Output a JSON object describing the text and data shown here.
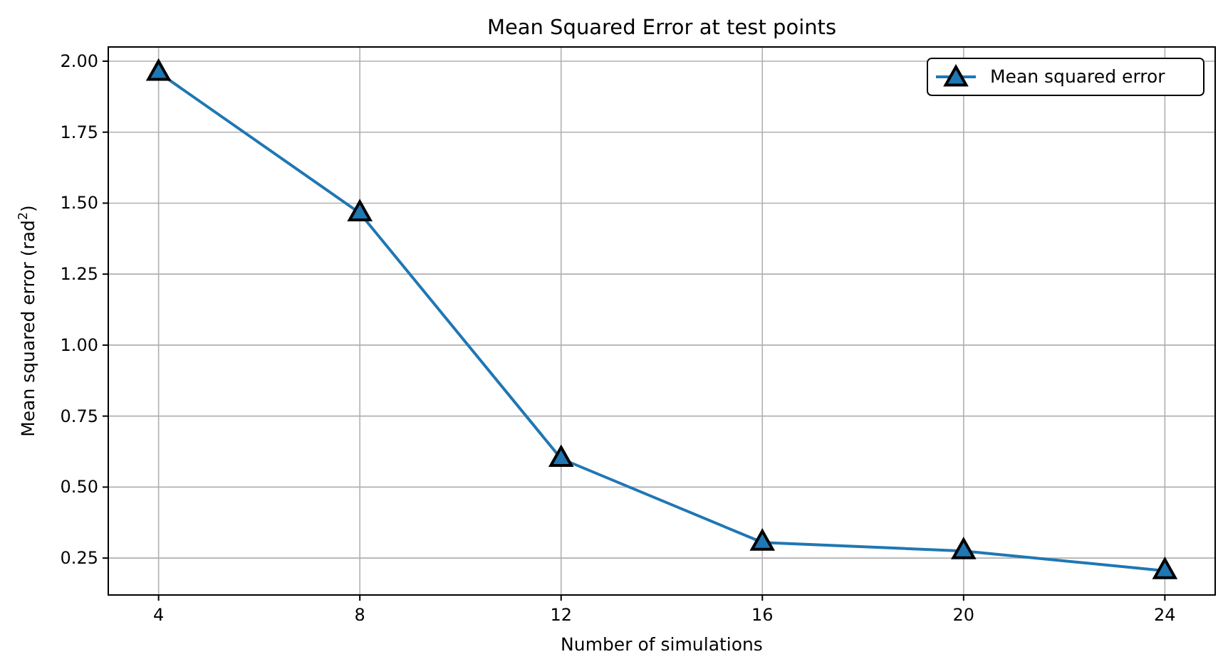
{
  "chart_data": {
    "type": "line",
    "title": "Mean Squared Error at test points",
    "xlabel": "Number of simulations",
    "ylabel": "Mean squared error (rad$^{2}$)",
    "x": [
      4,
      8,
      12,
      16,
      20,
      24
    ],
    "series": [
      {
        "name": "Mean squared error",
        "color": "#1f77b4",
        "values": [
          1.96,
          1.465,
          0.6,
          0.305,
          0.275,
          0.205
        ]
      }
    ],
    "xlim": [
      3,
      25
    ],
    "xticks": [
      4,
      8,
      12,
      16,
      20,
      24
    ],
    "ylim": [
      0.12,
      2.05
    ],
    "yticks": [
      {
        "value": 0.25,
        "label": "0.25"
      },
      {
        "value": 0.5,
        "label": "0.50"
      },
      {
        "value": 0.75,
        "label": "0.75"
      },
      {
        "value": 1,
        "label": "1.00"
      },
      {
        "value": 1.25,
        "label": "1.25"
      },
      {
        "value": 1.5,
        "label": "1.50"
      },
      {
        "value": 1.75,
        "label": "1.75"
      },
      {
        "value": 2,
        "label": "2.00"
      }
    ],
    "grid": true,
    "legend": "top right",
    "marker": "triangle",
    "line_style": "solid"
  }
}
